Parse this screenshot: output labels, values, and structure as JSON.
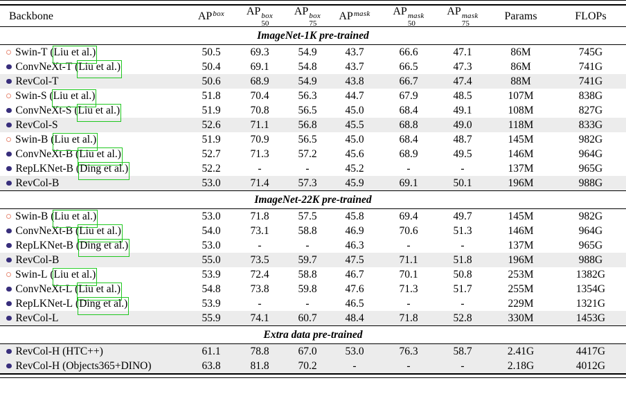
{
  "colors": {
    "green": "#1fc71f",
    "highlight": "#ececec",
    "marker_open": "#e8907c",
    "marker_filled": "#382e7c",
    "text": "#000000"
  },
  "table": {
    "columns": [
      {
        "id": "backbone",
        "label": "Backbone",
        "sup": "",
        "sub": ""
      },
      {
        "id": "ap-box",
        "label": "AP",
        "sup": "box",
        "sub": ""
      },
      {
        "id": "ap-box-50",
        "label": "AP",
        "sup": "box",
        "sub": "50"
      },
      {
        "id": "ap-box-75",
        "label": "AP",
        "sup": "box",
        "sub": "75"
      },
      {
        "id": "ap-mask",
        "label": "AP",
        "sup": "mask",
        "sub": ""
      },
      {
        "id": "ap-mask-50",
        "label": "AP",
        "sup": "mask",
        "sub": "50"
      },
      {
        "id": "ap-mask-75",
        "label": "AP",
        "sup": "mask",
        "sub": "75"
      },
      {
        "id": "params",
        "label": "Params",
        "sup": "",
        "sub": ""
      },
      {
        "id": "flops",
        "label": "FLOPs",
        "sup": "",
        "sub": ""
      }
    ],
    "sections": [
      {
        "title": "ImageNet-1K pre-trained",
        "rows": [
          {
            "marker": "open",
            "name": "Swin-T",
            "cite": "Liu et al.",
            "highlight": false,
            "values": [
              "50.5",
              "69.3",
              "54.9",
              "43.7",
              "66.6",
              "47.1",
              "86M",
              "745G"
            ]
          },
          {
            "marker": "filled",
            "name": "ConvNeXt-T",
            "cite": "Liu et al.",
            "highlight": false,
            "values": [
              "50.4",
              "69.1",
              "54.8",
              "43.7",
              "66.5",
              "47.3",
              "86M",
              "741G"
            ]
          },
          {
            "marker": "filled",
            "name": "RevCol-T",
            "cite": "",
            "highlight": true,
            "values": [
              "50.6",
              "68.9",
              "54.9",
              "43.8",
              "66.7",
              "47.4",
              "88M",
              "741G"
            ]
          },
          {
            "marker": "open",
            "name": "Swin-S",
            "cite": "Liu et al.",
            "highlight": false,
            "values": [
              "51.8",
              "70.4",
              "56.3",
              "44.7",
              "67.9",
              "48.5",
              "107M",
              "838G"
            ]
          },
          {
            "marker": "filled",
            "name": "ConvNeXt-S",
            "cite": "Liu et al.",
            "highlight": false,
            "values": [
              "51.9",
              "70.8",
              "56.5",
              "45.0",
              "68.4",
              "49.1",
              "108M",
              "827G"
            ]
          },
          {
            "marker": "filled",
            "name": "RevCol-S",
            "cite": "",
            "highlight": true,
            "values": [
              "52.6",
              "71.1",
              "56.8",
              "45.5",
              "68.8",
              "49.0",
              "118M",
              "833G"
            ]
          },
          {
            "marker": "open",
            "name": "Swin-B",
            "cite": "Liu et al.",
            "highlight": false,
            "values": [
              "51.9",
              "70.9",
              "56.5",
              "45.0",
              "68.4",
              "48.7",
              "145M",
              "982G"
            ]
          },
          {
            "marker": "filled",
            "name": "ConvNeXt-B",
            "cite": "Liu et al.",
            "highlight": false,
            "values": [
              "52.7",
              "71.3",
              "57.2",
              "45.6",
              "68.9",
              "49.5",
              "146M",
              "964G"
            ]
          },
          {
            "marker": "filled",
            "name": "RepLKNet-B",
            "cite": "Ding et al.",
            "highlight": false,
            "values": [
              "52.2",
              "-",
              "-",
              "45.2",
              "-",
              "-",
              "137M",
              "965G"
            ]
          },
          {
            "marker": "filled",
            "name": "RevCol-B",
            "cite": "",
            "highlight": true,
            "values": [
              "53.0",
              "71.4",
              "57.3",
              "45.9",
              "69.1",
              "50.1",
              "196M",
              "988G"
            ]
          }
        ]
      },
      {
        "title": "ImageNet-22K pre-trained",
        "rows": [
          {
            "marker": "open",
            "name": "Swin-B",
            "cite": "Liu et al.",
            "highlight": false,
            "values": [
              "53.0",
              "71.8",
              "57.5",
              "45.8",
              "69.4",
              "49.7",
              "145M",
              "982G"
            ]
          },
          {
            "marker": "filled",
            "name": "ConvNeXt-B",
            "cite": "Liu et al.",
            "highlight": false,
            "values": [
              "54.0",
              "73.1",
              "58.8",
              "46.9",
              "70.6",
              "51.3",
              "146M",
              "964G"
            ]
          },
          {
            "marker": "filled",
            "name": "RepLKNet-B",
            "cite": "Ding et al.",
            "highlight": false,
            "values": [
              "53.0",
              "-",
              "-",
              "46.3",
              "-",
              "-",
              "137M",
              "965G"
            ]
          },
          {
            "marker": "filled",
            "name": "RevCol-B",
            "cite": "",
            "highlight": true,
            "values": [
              "55.0",
              "73.5",
              "59.7",
              "47.5",
              "71.1",
              "51.8",
              "196M",
              "988G"
            ]
          },
          {
            "marker": "open",
            "name": "Swin-L",
            "cite": "Liu et al.",
            "highlight": false,
            "values": [
              "53.9",
              "72.4",
              "58.8",
              "46.7",
              "70.1",
              "50.8",
              "253M",
              "1382G"
            ]
          },
          {
            "marker": "filled",
            "name": "ConvNeXt-L",
            "cite": "Liu et al.",
            "highlight": false,
            "values": [
              "54.8",
              "73.8",
              "59.8",
              "47.6",
              "71.3",
              "51.7",
              "255M",
              "1354G"
            ]
          },
          {
            "marker": "filled",
            "name": "RepLKNet-L",
            "cite": "Ding et al.",
            "highlight": false,
            "values": [
              "53.9",
              "-",
              "-",
              "46.5",
              "-",
              "-",
              "229M",
              "1321G"
            ]
          },
          {
            "marker": "filled",
            "name": "RevCol-L",
            "cite": "",
            "highlight": true,
            "values": [
              "55.9",
              "74.1",
              "60.7",
              "48.4",
              "71.8",
              "52.8",
              "330M",
              "1453G"
            ]
          }
        ]
      },
      {
        "title": "Extra data pre-trained",
        "rows": [
          {
            "marker": "filled",
            "name": "RevCol-H (HTC++)",
            "cite": "",
            "highlight": true,
            "values": [
              "61.1",
              "78.8",
              "67.0",
              "53.0",
              "76.3",
              "58.7",
              "2.41G",
              "4417G"
            ]
          },
          {
            "marker": "filled",
            "name": "RevCol-H (Objects365+DINO)",
            "cite": "",
            "highlight": true,
            "values": [
              "63.8",
              "81.8",
              "70.2",
              "-",
              "-",
              "-",
              "2.18G",
              "4012G"
            ]
          }
        ]
      }
    ]
  }
}
